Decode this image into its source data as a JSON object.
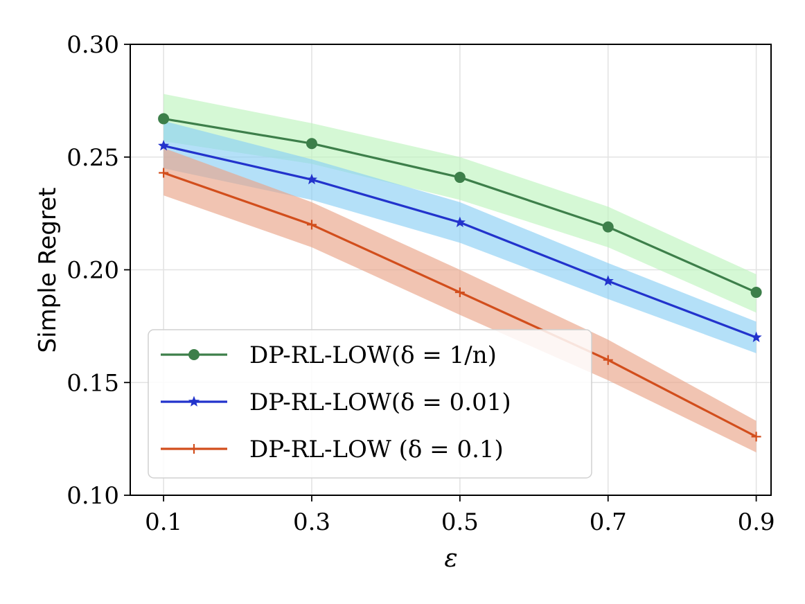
{
  "chart_data": {
    "type": "line",
    "title": "",
    "xlabel": "ε",
    "ylabel": "Simple Regret",
    "x": [
      0.1,
      0.3,
      0.5,
      0.7,
      0.9
    ],
    "x_tick_labels": [
      "0.1",
      "0.3",
      "0.5",
      "0.7",
      "0.9"
    ],
    "xlim": [
      0.055,
      0.92
    ],
    "ylim": [
      0.1,
      0.3
    ],
    "y_ticks": [
      0.1,
      0.15,
      0.2,
      0.25,
      0.3
    ],
    "y_tick_labels": [
      "0.10",
      "0.15",
      "0.20",
      "0.25",
      "0.30"
    ],
    "grid": true,
    "legend_position": "lower-left",
    "series": [
      {
        "name": "DP-RL-LOW(δ = 1/n)",
        "marker": "circle",
        "color": "#3d7f4a",
        "band_color": "#bff5bf",
        "values": [
          0.267,
          0.256,
          0.241,
          0.219,
          0.19
        ],
        "lower": [
          0.257,
          0.247,
          0.231,
          0.21,
          0.181
        ],
        "upper": [
          0.278,
          0.265,
          0.25,
          0.228,
          0.198
        ]
      },
      {
        "name": "DP-RL-LOW(δ = 0.01)",
        "marker": "star",
        "color": "#2233cc",
        "band_color": "#8ccff5",
        "values": [
          0.255,
          0.24,
          0.221,
          0.195,
          0.17
        ],
        "lower": [
          0.245,
          0.231,
          0.212,
          0.187,
          0.163
        ],
        "upper": [
          0.266,
          0.249,
          0.23,
          0.203,
          0.177
        ]
      },
      {
        "name": "DP-RL-LOW (δ = 0.1)",
        "marker": "plus",
        "color": "#d24e1c",
        "band_color": "#e9a488",
        "values": [
          0.243,
          0.22,
          0.19,
          0.16,
          0.126
        ],
        "lower": [
          0.233,
          0.21,
          0.18,
          0.151,
          0.119
        ],
        "upper": [
          0.254,
          0.23,
          0.2,
          0.169,
          0.133
        ]
      }
    ]
  }
}
